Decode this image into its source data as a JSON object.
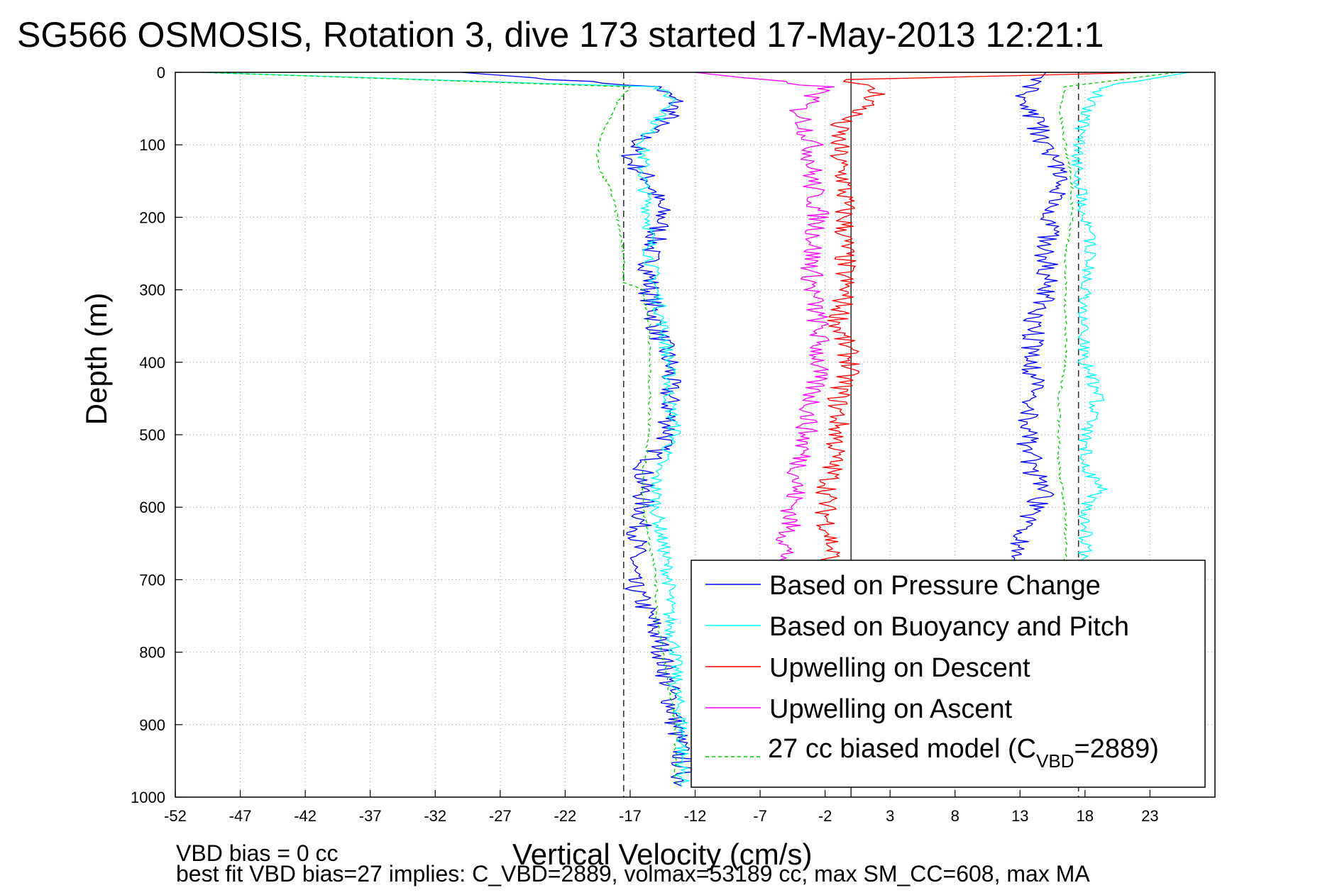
{
  "chart_data": {
    "type": "line",
    "title": "SG566 OSMOSIS, Rotation 3, dive 173 started 17-May-2013 12:21:1",
    "xlabel": "Vertical Velocity (cm/s)",
    "ylabel": "Depth (m)",
    "xlim": [
      -52,
      28
    ],
    "ylim": [
      0,
      1000
    ],
    "y_reversed": true,
    "xticks": [
      "-52",
      "-47",
      "-42",
      "-37",
      "-32",
      "-27",
      "-22",
      "-17",
      "-12",
      "-7",
      "-2",
      "3",
      "8",
      "13",
      "18",
      "23"
    ],
    "yticks": [
      "0",
      "100",
      "200",
      "300",
      "400",
      "500",
      "600",
      "700",
      "800",
      "900",
      "1000"
    ],
    "grid": true,
    "legend_position": "bottom-right",
    "reference_lines": [
      {
        "x": -17.5,
        "style": "dashed"
      },
      {
        "x": 0,
        "style": "solid"
      },
      {
        "x": 17.5,
        "style": "dashed"
      }
    ],
    "series": [
      {
        "name": "Based on Pressure Change",
        "color": "#0000ff",
        "style": "solid",
        "descent": {
          "depth": [
            0,
            20,
            40,
            60,
            80,
            100,
            120,
            150,
            200,
            250,
            300,
            350,
            400,
            450,
            500,
            550,
            600,
            650,
            700,
            750,
            800,
            850,
            900,
            950,
            985
          ],
          "velocity": [
            -30,
            -15,
            -13.5,
            -14,
            -15.5,
            -16.5,
            -17,
            -15.5,
            -14.5,
            -15.5,
            -15.5,
            -15,
            -14,
            -14,
            -14,
            -16,
            -16,
            -16.5,
            -17,
            -15.5,
            -14.5,
            -14,
            -13.5,
            -13,
            -13
          ]
        },
        "ascent": {
          "depth": [
            985,
            950,
            900,
            850,
            800,
            750,
            700,
            650,
            620,
            600,
            580,
            550,
            500,
            450,
            400,
            350,
            300,
            250,
            200,
            150,
            100,
            60,
            30,
            0
          ],
          "velocity": [
            16,
            16,
            15.5,
            15,
            14.5,
            14,
            13.5,
            13,
            13.5,
            14,
            15,
            14,
            13.5,
            14,
            14,
            14,
            15,
            15,
            15.5,
            16,
            15,
            14,
            13.5,
            15
          ]
        }
      },
      {
        "name": "Based on Buoyancy and Pitch",
        "color": "#00ffff",
        "style": "solid",
        "descent": {
          "depth": [
            0,
            20,
            40,
            60,
            80,
            100,
            150,
            200,
            250,
            300,
            350,
            400,
            450,
            500,
            550,
            600,
            650,
            700,
            750,
            800,
            850,
            900,
            950,
            985
          ],
          "velocity": [
            -50,
            -15,
            -13.5,
            -14.5,
            -15.5,
            -16,
            -16,
            -15.5,
            -15.5,
            -15,
            -14.5,
            -14,
            -14,
            -13.5,
            -15,
            -15,
            -14.5,
            -14,
            -14,
            -13.5,
            -13.5,
            -13,
            -13,
            -13
          ]
        },
        "ascent": {
          "depth": [
            985,
            950,
            900,
            850,
            800,
            750,
            700,
            650,
            600,
            570,
            550,
            500,
            450,
            400,
            350,
            300,
            250,
            200,
            150,
            100,
            50,
            20,
            0
          ],
          "velocity": [
            16,
            18,
            18,
            18,
            18,
            18,
            18,
            18,
            18,
            19.5,
            18,
            18,
            19,
            18,
            18,
            18,
            18.5,
            18,
            17.5,
            17.5,
            18,
            19.5,
            26
          ]
        }
      },
      {
        "name": "Upwelling on Descent",
        "color": "#ff0000",
        "style": "solid",
        "profile": {
          "depth": [
            0,
            10,
            30,
            50,
            70,
            90,
            120,
            150,
            200,
            250,
            300,
            350,
            400,
            450,
            500,
            550,
            600,
            650,
            700,
            750,
            800,
            850,
            900,
            950,
            985
          ],
          "velocity": [
            23,
            0,
            2,
            1,
            -1,
            -1,
            -1,
            -0.5,
            -0.5,
            -0.5,
            -0.5,
            -1,
            0,
            -1,
            -1,
            -1.5,
            -2,
            -1.5,
            -1.5,
            -1,
            -1.5,
            -1.5,
            -2,
            -2,
            -2
          ]
        }
      },
      {
        "name": "Upwelling on Ascent",
        "color": "#ff00ff",
        "style": "solid",
        "profile": {
          "depth": [
            0,
            20,
            50,
            100,
            150,
            200,
            250,
            300,
            350,
            400,
            450,
            500,
            550,
            600,
            650,
            700,
            750,
            800,
            850,
            900,
            950,
            985
          ],
          "velocity": [
            -12,
            -2,
            -4,
            -3,
            -3,
            -2.5,
            -3,
            -3,
            -2.5,
            -2.5,
            -3,
            -3.5,
            -4,
            -4.5,
            -5,
            -5,
            -5,
            -4.5,
            -4.5,
            -4,
            -3.5,
            -3
          ]
        }
      },
      {
        "name": "27 cc biased model (C_VBD=2889)",
        "color": "#00cc00",
        "style": "dashed",
        "descent": {
          "depth": [
            0,
            20,
            40,
            60,
            80,
            100,
            130,
            160,
            200,
            250,
            290,
            300,
            350,
            400,
            450,
            500,
            550,
            600,
            650,
            700,
            750,
            800,
            850,
            900,
            950,
            985
          ],
          "velocity": [
            -50,
            -17,
            -18,
            -18.5,
            -19,
            -19.5,
            -19.5,
            -18.5,
            -18,
            -17.5,
            -17.5,
            -16,
            -15.5,
            -15.5,
            -15.5,
            -15.5,
            -16,
            -16,
            -15.5,
            -15,
            -15,
            -14.5,
            -14,
            -13.5,
            -13.5,
            -13.5
          ]
        },
        "ascent": {
          "depth": [
            985,
            950,
            900,
            850,
            800,
            750,
            700,
            650,
            600,
            550,
            500,
            450,
            400,
            350,
            300,
            250,
            200,
            150,
            100,
            50,
            20,
            0
          ],
          "velocity": [
            16,
            16.5,
            16.5,
            16.5,
            16.5,
            16.5,
            16.5,
            16.5,
            16.5,
            16,
            16,
            16,
            16.5,
            16.5,
            16.5,
            16.5,
            17,
            17,
            16.5,
            16,
            16.5,
            25
          ]
        }
      }
    ],
    "legend": {
      "entries": [
        "Based on Pressure Change",
        "Based on Buoyancy and Pitch",
        "Upwelling on Descent",
        "Upwelling on Ascent"
      ],
      "model_prefix": "27 cc biased model (C",
      "model_sub": "VBD",
      "model_suffix": "=2889)"
    },
    "notes": {
      "line1": "VBD bias = 0 cc",
      "line2": "best fit VBD bias=27 implies: C_VBD=2889, volmax=53189 cc, max SM_CC=608, max MA"
    }
  }
}
